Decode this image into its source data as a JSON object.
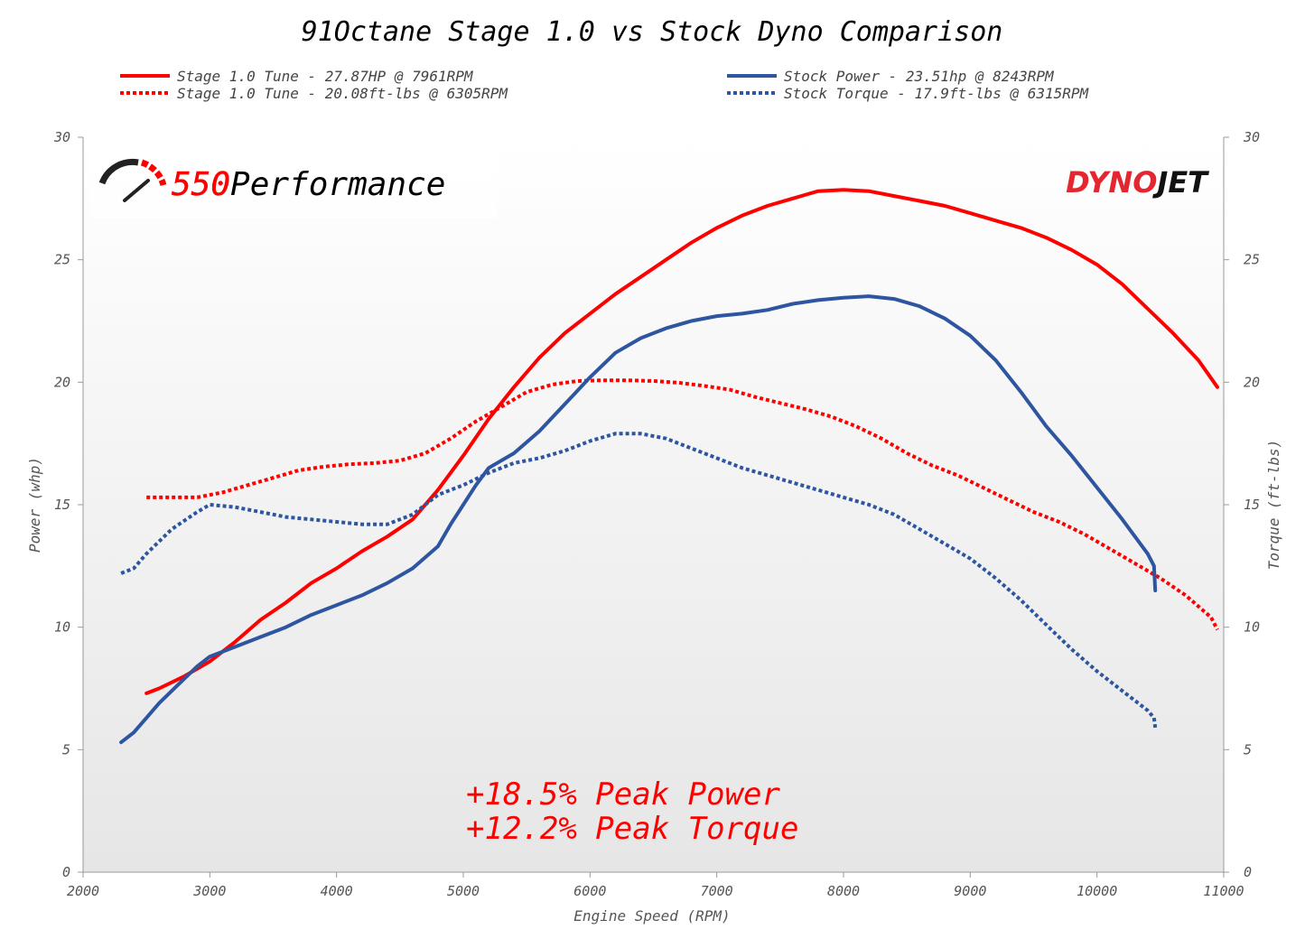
{
  "chart_data": {
    "type": "line",
    "title": "91Octane Stage 1.0 vs Stock Dyno Comparison",
    "xlabel": "Engine Speed (RPM)",
    "ylabel_left": "Power (whp)",
    "ylabel_right": "Torque (ft-lbs)",
    "xlim": [
      2000,
      11000
    ],
    "ylim": [
      0,
      30
    ],
    "x_ticks": [
      "2000",
      "3000",
      "4000",
      "5000",
      "6000",
      "7000",
      "8000",
      "9000",
      "10000",
      "11000"
    ],
    "y_ticks": [
      "0",
      "5",
      "10",
      "15",
      "20",
      "25",
      "30"
    ],
    "legend_position": "top",
    "grid": false,
    "series": [
      {
        "name": "Stage 1.0 Tune - 27.87HP @ 7961RPM",
        "color": "#ff0000",
        "dash": "solid",
        "points": [
          [
            2500,
            7.3
          ],
          [
            2600,
            7.5
          ],
          [
            2800,
            8.0
          ],
          [
            3000,
            8.6
          ],
          [
            3200,
            9.4
          ],
          [
            3400,
            10.3
          ],
          [
            3600,
            11.0
          ],
          [
            3800,
            11.8
          ],
          [
            4000,
            12.4
          ],
          [
            4200,
            13.1
          ],
          [
            4400,
            13.7
          ],
          [
            4600,
            14.4
          ],
          [
            4800,
            15.6
          ],
          [
            5000,
            17.0
          ],
          [
            5200,
            18.5
          ],
          [
            5400,
            19.8
          ],
          [
            5600,
            21.0
          ],
          [
            5800,
            22.0
          ],
          [
            6000,
            22.8
          ],
          [
            6200,
            23.6
          ],
          [
            6400,
            24.3
          ],
          [
            6600,
            25.0
          ],
          [
            6800,
            25.7
          ],
          [
            7000,
            26.3
          ],
          [
            7200,
            26.8
          ],
          [
            7400,
            27.2
          ],
          [
            7600,
            27.5
          ],
          [
            7800,
            27.8
          ],
          [
            8000,
            27.85
          ],
          [
            8200,
            27.8
          ],
          [
            8400,
            27.6
          ],
          [
            8600,
            27.4
          ],
          [
            8800,
            27.2
          ],
          [
            9000,
            26.9
          ],
          [
            9200,
            26.6
          ],
          [
            9400,
            26.3
          ],
          [
            9600,
            25.9
          ],
          [
            9800,
            25.4
          ],
          [
            10000,
            24.8
          ],
          [
            10200,
            24.0
          ],
          [
            10400,
            23.0
          ],
          [
            10600,
            22.0
          ],
          [
            10800,
            20.9
          ],
          [
            10950,
            19.8
          ]
        ]
      },
      {
        "name": "Stage 1.0 Tune - 20.08ft-lbs @ 6305RPM",
        "color": "#ff0000",
        "dash": "dotted",
        "points": [
          [
            2500,
            15.3
          ],
          [
            2700,
            15.3
          ],
          [
            2900,
            15.3
          ],
          [
            3100,
            15.5
          ],
          [
            3300,
            15.8
          ],
          [
            3500,
            16.1
          ],
          [
            3700,
            16.4
          ],
          [
            3900,
            16.55
          ],
          [
            4100,
            16.65
          ],
          [
            4300,
            16.7
          ],
          [
            4500,
            16.8
          ],
          [
            4700,
            17.1
          ],
          [
            4900,
            17.7
          ],
          [
            5100,
            18.4
          ],
          [
            5300,
            19.0
          ],
          [
            5500,
            19.6
          ],
          [
            5700,
            19.9
          ],
          [
            5900,
            20.05
          ],
          [
            6100,
            20.08
          ],
          [
            6300,
            20.08
          ],
          [
            6500,
            20.05
          ],
          [
            6700,
            19.98
          ],
          [
            6900,
            19.85
          ],
          [
            7100,
            19.7
          ],
          [
            7300,
            19.4
          ],
          [
            7500,
            19.15
          ],
          [
            7700,
            18.9
          ],
          [
            7900,
            18.6
          ],
          [
            8100,
            18.2
          ],
          [
            8300,
            17.7
          ],
          [
            8500,
            17.1
          ],
          [
            8700,
            16.6
          ],
          [
            8900,
            16.2
          ],
          [
            9100,
            15.7
          ],
          [
            9300,
            15.2
          ],
          [
            9500,
            14.7
          ],
          [
            9700,
            14.3
          ],
          [
            9900,
            13.8
          ],
          [
            10100,
            13.2
          ],
          [
            10300,
            12.6
          ],
          [
            10500,
            12.0
          ],
          [
            10700,
            11.3
          ],
          [
            10900,
            10.4
          ],
          [
            10950,
            9.9
          ]
        ]
      },
      {
        "name": "Stock Power - 23.51hp @ 8243RPM",
        "color": "#2e55a0",
        "dash": "solid",
        "points": [
          [
            2300,
            5.3
          ],
          [
            2400,
            5.7
          ],
          [
            2500,
            6.3
          ],
          [
            2600,
            6.9
          ],
          [
            2700,
            7.4
          ],
          [
            2800,
            7.9
          ],
          [
            2900,
            8.4
          ],
          [
            3000,
            8.8
          ],
          [
            3200,
            9.2
          ],
          [
            3400,
            9.6
          ],
          [
            3600,
            10.0
          ],
          [
            3800,
            10.5
          ],
          [
            4000,
            10.9
          ],
          [
            4200,
            11.3
          ],
          [
            4400,
            11.8
          ],
          [
            4600,
            12.4
          ],
          [
            4800,
            13.3
          ],
          [
            4900,
            14.2
          ],
          [
            5000,
            15.0
          ],
          [
            5100,
            15.8
          ],
          [
            5200,
            16.5
          ],
          [
            5400,
            17.1
          ],
          [
            5600,
            18.0
          ],
          [
            5800,
            19.1
          ],
          [
            6000,
            20.2
          ],
          [
            6200,
            21.2
          ],
          [
            6400,
            21.8
          ],
          [
            6600,
            22.2
          ],
          [
            6800,
            22.5
          ],
          [
            7000,
            22.7
          ],
          [
            7200,
            22.8
          ],
          [
            7400,
            22.95
          ],
          [
            7600,
            23.2
          ],
          [
            7800,
            23.35
          ],
          [
            8000,
            23.45
          ],
          [
            8200,
            23.51
          ],
          [
            8400,
            23.4
          ],
          [
            8600,
            23.1
          ],
          [
            8800,
            22.6
          ],
          [
            9000,
            21.9
          ],
          [
            9200,
            20.9
          ],
          [
            9400,
            19.6
          ],
          [
            9600,
            18.2
          ],
          [
            9800,
            17.0
          ],
          [
            10000,
            15.7
          ],
          [
            10200,
            14.4
          ],
          [
            10400,
            13.0
          ],
          [
            10450,
            12.5
          ],
          [
            10460,
            11.5
          ]
        ]
      },
      {
        "name": "Stock Torque - 17.9ft-lbs @ 6315RPM",
        "color": "#2e55a0",
        "dash": "dotted",
        "points": [
          [
            2300,
            12.2
          ],
          [
            2400,
            12.4
          ],
          [
            2500,
            13.0
          ],
          [
            2700,
            14.0
          ],
          [
            2900,
            14.7
          ],
          [
            3000,
            15.0
          ],
          [
            3200,
            14.9
          ],
          [
            3400,
            14.7
          ],
          [
            3600,
            14.5
          ],
          [
            3800,
            14.4
          ],
          [
            4000,
            14.3
          ],
          [
            4200,
            14.2
          ],
          [
            4400,
            14.2
          ],
          [
            4600,
            14.6
          ],
          [
            4800,
            15.4
          ],
          [
            5000,
            15.8
          ],
          [
            5200,
            16.3
          ],
          [
            5400,
            16.7
          ],
          [
            5600,
            16.9
          ],
          [
            5800,
            17.2
          ],
          [
            6000,
            17.6
          ],
          [
            6200,
            17.9
          ],
          [
            6400,
            17.9
          ],
          [
            6600,
            17.7
          ],
          [
            6800,
            17.3
          ],
          [
            7000,
            16.9
          ],
          [
            7200,
            16.5
          ],
          [
            7400,
            16.2
          ],
          [
            7600,
            15.9
          ],
          [
            7800,
            15.6
          ],
          [
            8000,
            15.3
          ],
          [
            8200,
            15.0
          ],
          [
            8400,
            14.6
          ],
          [
            8600,
            14.0
          ],
          [
            8800,
            13.4
          ],
          [
            9000,
            12.8
          ],
          [
            9200,
            12.0
          ],
          [
            9400,
            11.1
          ],
          [
            9600,
            10.1
          ],
          [
            9800,
            9.1
          ],
          [
            10000,
            8.2
          ],
          [
            10200,
            7.4
          ],
          [
            10400,
            6.6
          ],
          [
            10450,
            6.3
          ],
          [
            10460,
            5.9
          ]
        ]
      }
    ],
    "annotations": [
      "+18.5% Peak Power",
      "+12.2% Peak Torque"
    ]
  },
  "logos": {
    "left": {
      "part1": "550",
      "part2": "Performance"
    },
    "right": {
      "part1": "DYNO",
      "part2": "JET"
    }
  }
}
